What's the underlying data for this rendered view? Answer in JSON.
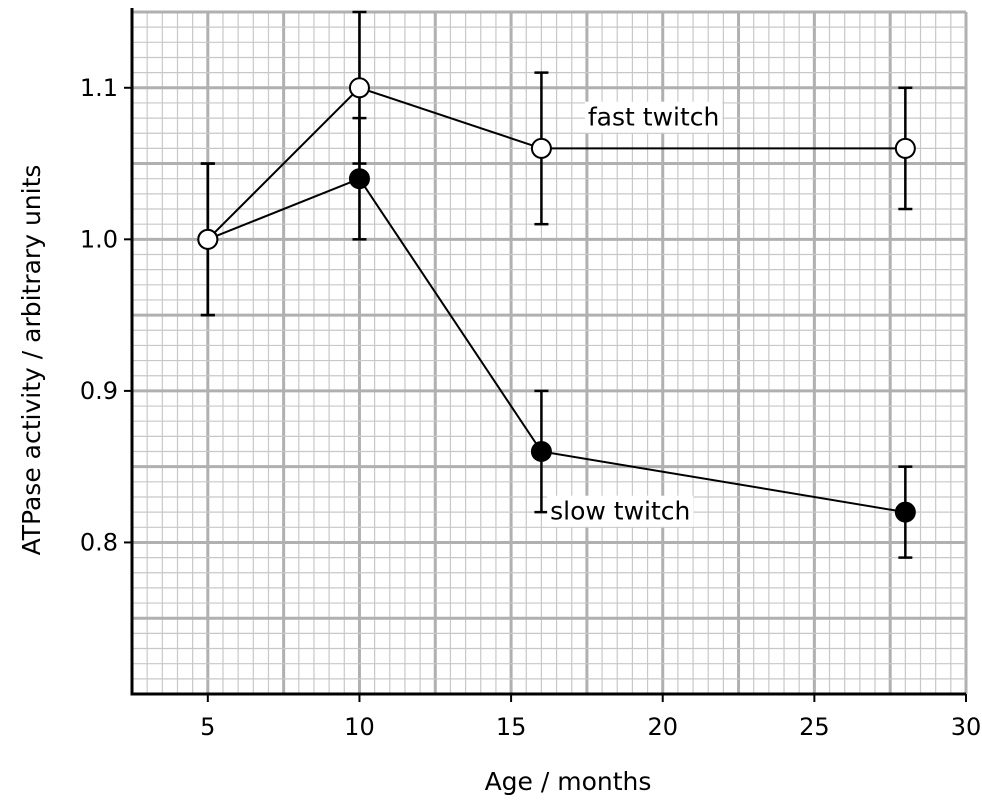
{
  "chart_data": {
    "type": "line",
    "xlabel": "Age / months",
    "ylabel": "ATPase activity / arbitrary units",
    "xlim": [
      2.5,
      30
    ],
    "ylim": [
      0.7,
      1.15
    ],
    "x_ticks": [
      5,
      10,
      15,
      20,
      25,
      30
    ],
    "y_ticks": [
      0.8,
      0.9,
      1.0,
      1.1
    ],
    "x_tick_labels": [
      "5",
      "10",
      "15",
      "20",
      "25",
      "30"
    ],
    "y_tick_labels": [
      "0.8",
      "0.9",
      "1.0",
      "1.1"
    ],
    "grid": true,
    "series": [
      {
        "name": "fast twitch",
        "marker": "open-circle",
        "points": [
          {
            "x": 5,
            "y": 1.0,
            "err_low": 0.95,
            "err_high": 1.05
          },
          {
            "x": 10,
            "y": 1.1,
            "err_low": 1.05,
            "err_high": 1.15
          },
          {
            "x": 16,
            "y": 1.06,
            "err_low": 1.01,
            "err_high": 1.11
          },
          {
            "x": 28,
            "y": 1.06,
            "err_low": 1.02,
            "err_high": 1.1
          }
        ]
      },
      {
        "name": "slow twitch",
        "marker": "filled-circle",
        "points": [
          {
            "x": 5,
            "y": 1.0,
            "err_low": 0.95,
            "err_high": 1.05
          },
          {
            "x": 10,
            "y": 1.04,
            "err_low": 1.0,
            "err_high": 1.08
          },
          {
            "x": 16,
            "y": 0.86,
            "err_low": 0.82,
            "err_high": 0.9
          },
          {
            "x": 28,
            "y": 0.82,
            "err_low": 0.79,
            "err_high": 0.85
          }
        ]
      }
    ],
    "annotations": [
      {
        "text": "fast twitch",
        "x": 19.7,
        "y": 1.075
      },
      {
        "text": "slow twitch",
        "x": 18.6,
        "y": 0.815
      }
    ]
  }
}
